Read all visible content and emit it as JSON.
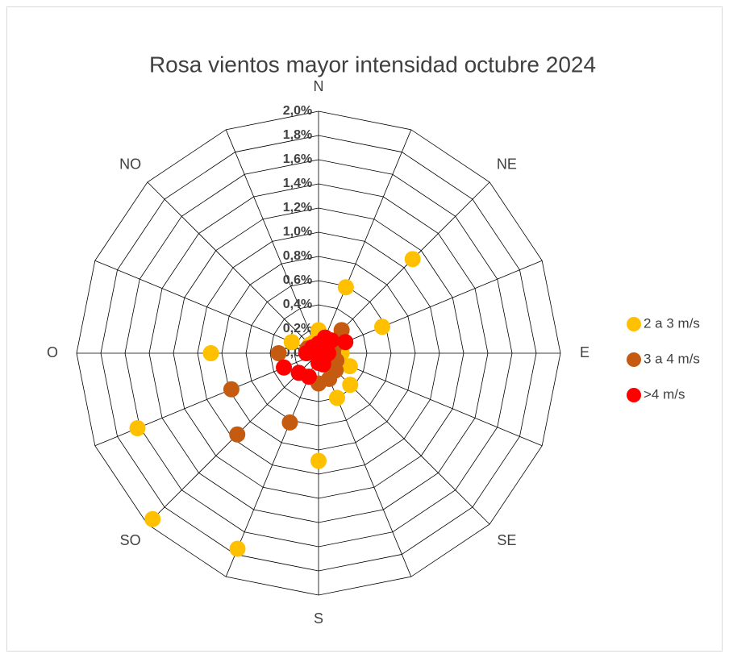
{
  "chart_data": {
    "type": "radar",
    "title": "Rosa vientos mayor intensidad octubre 2024",
    "categories": [
      "N",
      null,
      "NE",
      null,
      "E",
      null,
      "SE",
      null,
      "S",
      null,
      "SO",
      null,
      "O",
      null,
      "NO",
      null
    ],
    "series": [
      {
        "name": "2 a 3 m/s",
        "color": "#ffc000",
        "values": [
          0.19,
          0.59,
          1.1,
          0.57,
          0.19,
          0.28,
          0.37,
          0.4,
          0.89,
          1.75,
          1.94,
          1.62,
          0.89,
          0.24,
          0.1,
          0.1
        ]
      },
      {
        "name": "3 a 4 m/s",
        "color": "#c55a11",
        "values": [
          0.05,
          0.12,
          0.27,
          0.14,
          0.12,
          0.16,
          0.2,
          0.23,
          0.25,
          0.62,
          0.95,
          0.78,
          0.33,
          0.1,
          0.05,
          0.05
        ]
      },
      {
        "name": ">4 m/s",
        "color": "#ff0000",
        "values": [
          0.08,
          0.14,
          0.15,
          0.24,
          0.08,
          0.06,
          0.05,
          0.1,
          0.08,
          0.21,
          0.23,
          0.31,
          0.1,
          0.06,
          0.07,
          0.05
        ]
      }
    ],
    "ylim": [
      0,
      2.0
    ],
    "yticks": [
      {
        "value": 0,
        "label": "0,0%"
      },
      {
        "value": 0.2,
        "label": "0,2%"
      },
      {
        "value": 0.4,
        "label": "0,4%"
      },
      {
        "value": 0.6,
        "label": "0,6%"
      },
      {
        "value": 0.8,
        "label": "0,8%"
      },
      {
        "value": 1.0,
        "label": "1,0%"
      },
      {
        "value": 1.2,
        "label": "1,2%"
      },
      {
        "value": 1.4,
        "label": "1,4%"
      },
      {
        "value": 1.6,
        "label": "1,6%"
      },
      {
        "value": 1.8,
        "label": "1,8%"
      },
      {
        "value": 2.0,
        "label": "2,0%"
      }
    ],
    "grid": true,
    "legend": "right"
  }
}
